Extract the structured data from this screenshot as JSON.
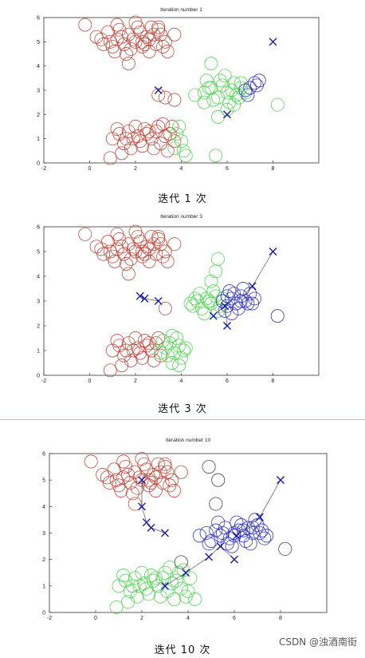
{
  "charts": [
    {
      "caption": "迭代 1 次",
      "chart_data": {
        "type": "scatter",
        "title": "Iteration number 1",
        "xlim": [
          -2,
          10
        ],
        "ylim": [
          0,
          6
        ],
        "xticks": [
          "-2",
          "0",
          "2",
          "4",
          "6",
          "8"
        ],
        "yticks": [
          "0",
          "1",
          "2",
          "3",
          "4",
          "5",
          "6"
        ],
        "series": [
          {
            "color": "#c0392b",
            "x": [
              -0.2,
              0.3,
              0.6,
              0.8,
              1.0,
              1.2,
              1.3,
              1.5,
              1.7,
              1.8,
              2.0,
              2.2,
              2.3,
              2.5,
              2.7,
              2.9,
              3.1,
              3.3,
              1.1,
              1.6,
              2.1,
              2.6,
              3.0,
              0.9,
              1.4,
              1.9,
              2.4,
              2.8,
              3.2,
              1.7,
              2.0,
              2.3,
              0.5,
              1.2,
              2.6,
              3.7,
              3.4,
              3.0
            ],
            "y": [
              5.7,
              5.2,
              4.9,
              5.4,
              4.8,
              5.1,
              5.5,
              4.9,
              5.3,
              4.7,
              5.0,
              5.4,
              4.8,
              5.2,
              5.6,
              4.9,
              5.3,
              5.0,
              4.6,
              4.5,
              5.6,
              4.6,
              5.6,
              5.0,
              5.2,
              5.1,
              4.9,
              5.3,
              4.8,
              4.1,
              5.8,
              5.0,
              5.1,
              5.7,
              5.1,
              5.3,
              4.6,
              5.5
            ]
          },
          {
            "color": "#c0392b",
            "x": [
              1.0,
              1.3,
              1.5,
              1.7,
              1.9,
              2.1,
              2.3,
              2.5,
              2.7,
              2.9,
              3.1,
              3.3,
              3.5,
              3.7,
              1.2,
              1.8,
              2.4,
              3.0,
              3.4,
              1.6,
              2.2,
              2.8,
              0.9,
              2.0,
              2.6,
              3.2,
              1.4,
              3.6,
              3.3,
              3.0,
              3.7
            ],
            "y": [
              1.0,
              1.2,
              0.8,
              1.3,
              1.0,
              1.1,
              0.7,
              1.2,
              1.0,
              1.3,
              0.8,
              1.1,
              1.2,
              0.9,
              1.4,
              0.6,
              1.4,
              1.5,
              0.5,
              1.0,
              0.9,
              0.6,
              0.2,
              1.5,
              1.3,
              1.6,
              0.4,
              1.5,
              2.7,
              2.8,
              2.6
            ]
          },
          {
            "color": "#3fd43f",
            "x": [
              3.8,
              4.0,
              4.1,
              3.9,
              4.2,
              3.7,
              5.5,
              4.6,
              5.0,
              5.3,
              5.6,
              5.8,
              6.0,
              6.2,
              6.4,
              6.6,
              5.1,
              5.4,
              5.7,
              6.1,
              6.3,
              6.5,
              5.9,
              5.2,
              6.8,
              5.6,
              6.0,
              6.3,
              5.0,
              8.2,
              6.6,
              5.3
            ],
            "y": [
              1.2,
              0.9,
              0.5,
              1.5,
              0.3,
              0.6,
              0.3,
              2.8,
              2.9,
              3.1,
              2.7,
              3.2,
              2.9,
              3.0,
              2.8,
              3.3,
              3.4,
              2.6,
              3.4,
              2.5,
              3.3,
              2.7,
              3.6,
              3.1,
              2.9,
              1.9,
              2.2,
              2.4,
              2.5,
              2.4,
              3.1,
              4.1
            ]
          },
          {
            "color": "#2222c0",
            "x": [
              7.2,
              7.4,
              7.0,
              6.8,
              7.3,
              6.9
            ],
            "y": [
              3.3,
              3.4,
              3.1,
              3.0,
              3.2,
              2.8
            ]
          }
        ],
        "centroids": [
          [
            3.0,
            3.0
          ],
          [
            8.0,
            5.0
          ],
          [
            6.0,
            2.0
          ]
        ],
        "centroid_paths": []
      }
    },
    {
      "caption": "迭代 3 次",
      "chart_data": {
        "type": "scatter",
        "title": "Iteration number 3",
        "xlim": [
          -2,
          10
        ],
        "ylim": [
          0,
          6
        ],
        "xticks": [
          "-2",
          "0",
          "2",
          "4",
          "6",
          "8"
        ],
        "yticks": [
          "0",
          "1",
          "2",
          "3",
          "4",
          "5",
          "6"
        ],
        "series": [
          {
            "color": "#c0392b",
            "x": [
              -0.2,
              0.3,
              0.6,
              0.8,
              1.0,
              1.2,
              1.3,
              1.5,
              1.7,
              1.8,
              2.0,
              2.2,
              2.3,
              2.5,
              2.7,
              2.9,
              3.1,
              3.3,
              1.1,
              1.6,
              2.1,
              2.6,
              3.0,
              0.9,
              1.4,
              1.9,
              2.4,
              2.8,
              3.2,
              1.7,
              2.0,
              2.3,
              0.5,
              1.2,
              2.6,
              3.7,
              3.4,
              3.0
            ],
            "y": [
              5.7,
              5.2,
              4.9,
              5.4,
              4.8,
              5.1,
              5.5,
              4.9,
              5.3,
              4.7,
              5.0,
              5.4,
              4.8,
              5.2,
              5.6,
              4.9,
              5.3,
              5.0,
              4.6,
              4.5,
              5.6,
              4.6,
              5.6,
              5.0,
              5.2,
              5.1,
              4.9,
              5.3,
              4.8,
              4.1,
              5.8,
              5.0,
              5.1,
              5.7,
              5.1,
              5.3,
              4.6,
              5.5
            ]
          },
          {
            "color": "#c0392b",
            "x": [
              1.0,
              1.3,
              1.5,
              1.7,
              1.9,
              2.1,
              2.3,
              2.5,
              2.7,
              2.9,
              3.1,
              1.2,
              1.8,
              2.4,
              3.0,
              1.6,
              2.2,
              2.8,
              0.9,
              2.0,
              2.6,
              1.4,
              3.3
            ],
            "y": [
              1.0,
              1.2,
              0.8,
              1.3,
              1.0,
              1.1,
              0.7,
              1.2,
              1.0,
              1.3,
              0.8,
              1.4,
              0.6,
              1.4,
              1.5,
              1.0,
              0.9,
              0.6,
              0.2,
              1.5,
              1.3,
              0.4,
              2.7
            ]
          },
          {
            "color": "#3fd43f",
            "x": [
              3.3,
              3.5,
              3.7,
              3.9,
              4.0,
              3.4,
              3.8,
              3.6,
              4.1,
              3.2,
              3.9,
              4.2,
              3.6,
              3.1,
              4.5,
              4.7,
              4.9,
              5.1,
              5.3,
              5.5,
              5.7,
              4.8,
              5.0,
              5.4,
              5.6,
              4.6,
              5.2,
              5.8,
              4.4,
              5.5,
              5.3,
              5.6
            ],
            "y": [
              1.1,
              1.3,
              0.9,
              1.2,
              0.7,
              0.8,
              1.5,
              1.6,
              1.0,
              1.4,
              0.4,
              1.1,
              0.5,
              0.9,
              2.8,
              3.0,
              2.7,
              3.1,
              2.9,
              3.2,
              2.8,
              3.3,
              2.5,
              3.4,
              2.6,
              3.1,
              3.0,
              3.1,
              2.9,
              4.2,
              3.8,
              4.7
            ]
          },
          {
            "color": "#2222c0",
            "x": [
              5.8,
              6.0,
              6.2,
              6.4,
              6.6,
              6.8,
              7.0,
              7.2,
              6.1,
              6.5,
              6.9,
              6.3,
              5.9,
              6.7,
              7.1,
              6.2,
              6.0,
              6.6
            ],
            "y": [
              3.0,
              2.8,
              3.1,
              2.9,
              3.2,
              3.0,
              3.3,
              3.1,
              3.4,
              2.7,
              2.9,
              3.3,
              2.6,
              3.5,
              2.9,
              2.5,
              3.2,
              3.0
            ]
          },
          {
            "color": "#2222c0",
            "x": [
              8.2
            ],
            "y": [
              2.4
            ]
          }
        ],
        "centroids": [
          [
            2.2,
            3.2
          ],
          [
            2.4,
            3.1
          ],
          [
            3.0,
            3.0
          ],
          [
            5.4,
            2.4
          ],
          [
            6.0,
            2.0
          ],
          [
            5.9,
            2.8
          ],
          [
            7.1,
            3.6
          ],
          [
            8.0,
            5.0
          ]
        ],
        "centroid_paths": [
          [
            [
              2.2,
              3.2
            ],
            [
              2.4,
              3.1
            ],
            [
              3.0,
              3.0
            ]
          ],
          [
            [
              6.0,
              2.0
            ],
            [
              5.9,
              2.8
            ],
            [
              5.4,
              2.4
            ]
          ],
          [
            [
              8.0,
              5.0
            ],
            [
              7.1,
              3.6
            ],
            [
              6.6,
              3.1
            ]
          ]
        ]
      }
    },
    {
      "caption": "迭代 10 次",
      "chart_data": {
        "type": "scatter",
        "title": "Iteration number 10",
        "xlim": [
          -2,
          10
        ],
        "ylim": [
          0,
          6
        ],
        "xticks": [
          "-2",
          "0",
          "2",
          "4",
          "6",
          "8"
        ],
        "yticks": [
          "0",
          "1",
          "2",
          "3",
          "4",
          "5",
          "6"
        ],
        "series": [
          {
            "color": "#c0392b",
            "x": [
              -0.2,
              0.3,
              0.6,
              0.8,
              1.0,
              1.2,
              1.3,
              1.5,
              1.7,
              1.8,
              2.0,
              2.2,
              2.3,
              2.5,
              2.7,
              2.9,
              3.1,
              3.3,
              1.1,
              1.6,
              2.1,
              2.6,
              3.0,
              0.9,
              1.4,
              1.9,
              2.4,
              2.8,
              3.2,
              1.7,
              2.0,
              2.3,
              0.5,
              1.2,
              2.6,
              3.7,
              3.4,
              3.0
            ],
            "y": [
              5.7,
              5.2,
              4.9,
              5.4,
              4.8,
              5.1,
              5.5,
              4.9,
              5.3,
              4.7,
              5.0,
              5.4,
              4.8,
              5.2,
              5.6,
              4.9,
              5.3,
              5.0,
              4.6,
              4.5,
              5.6,
              4.6,
              5.6,
              5.0,
              5.2,
              5.1,
              4.9,
              5.3,
              4.8,
              4.1,
              5.8,
              5.0,
              5.1,
              5.7,
              5.1,
              5.3,
              4.6,
              5.5
            ]
          },
          {
            "color": "#3fd43f",
            "x": [
              1.0,
              1.3,
              1.5,
              1.7,
              1.9,
              2.1,
              2.3,
              2.5,
              2.7,
              2.9,
              3.1,
              3.3,
              3.5,
              3.7,
              3.9,
              4.1,
              1.2,
              1.8,
              2.4,
              3.0,
              3.4,
              3.8,
              1.6,
              2.2,
              2.8,
              3.6,
              0.9,
              2.0,
              2.6,
              3.2,
              1.4,
              4.0,
              4.3
            ],
            "y": [
              1.0,
              1.2,
              0.8,
              1.3,
              1.0,
              1.1,
              0.7,
              1.2,
              1.0,
              1.3,
              0.8,
              1.1,
              1.2,
              0.9,
              0.6,
              1.3,
              1.4,
              0.6,
              1.4,
              1.5,
              0.5,
              1.6,
              1.0,
              0.9,
              0.6,
              1.5,
              0.2,
              1.5,
              1.3,
              1.7,
              0.4,
              0.8,
              0.5
            ]
          },
          {
            "color": "#2222c0",
            "x": [
              4.5,
              4.8,
              5.0,
              5.2,
              5.4,
              5.6,
              5.8,
              6.0,
              6.2,
              6.4,
              6.6,
              6.8,
              7.0,
              7.2,
              7.4,
              5.3,
              5.7,
              6.1,
              6.5,
              6.9,
              7.3,
              5.9,
              6.3,
              6.7,
              7.1,
              5.5,
              6.0,
              6.4,
              4.9,
              6.8
            ],
            "y": [
              2.9,
              3.0,
              2.7,
              3.1,
              2.9,
              3.2,
              2.8,
              3.0,
              3.1,
              2.9,
              3.2,
              3.0,
              3.3,
              3.1,
              2.9,
              3.4,
              2.6,
              3.4,
              2.7,
              3.5,
              2.8,
              2.5,
              3.3,
              2.6,
              3.0,
              3.0,
              2.9,
              3.1,
              2.6,
              3.2
            ]
          },
          {
            "color": "#333333",
            "x": [
              4.9,
              5.3,
              5.2,
              8.2,
              3.7
            ],
            "y": [
              5.5,
              5.0,
              4.1,
              2.4,
              1.9
            ]
          }
        ],
        "centroids": [
          [
            2.0,
            5.0
          ],
          [
            2.0,
            4.0
          ],
          [
            2.2,
            3.4
          ],
          [
            2.4,
            3.2
          ],
          [
            3.0,
            3.0
          ],
          [
            3.0,
            1.0
          ],
          [
            3.9,
            1.5
          ],
          [
            4.9,
            2.1
          ],
          [
            5.4,
            2.5
          ],
          [
            6.0,
            2.0
          ],
          [
            6.1,
            2.9
          ],
          [
            7.1,
            3.6
          ],
          [
            8.0,
            5.0
          ]
        ],
        "centroid_paths": [
          [
            [
              2.0,
              5.0
            ],
            [
              2.0,
              4.0
            ],
            [
              2.2,
              3.4
            ],
            [
              2.4,
              3.2
            ],
            [
              3.0,
              3.0
            ]
          ],
          [
            [
              3.0,
              1.0
            ],
            [
              3.9,
              1.5
            ],
            [
              4.9,
              2.1
            ],
            [
              5.4,
              2.5
            ],
            [
              6.0,
              2.0
            ]
          ],
          [
            [
              8.0,
              5.0
            ],
            [
              7.1,
              3.6
            ],
            [
              6.1,
              2.9
            ]
          ]
        ]
      }
    }
  ],
  "watermark": "CSDN @浊酒南街"
}
